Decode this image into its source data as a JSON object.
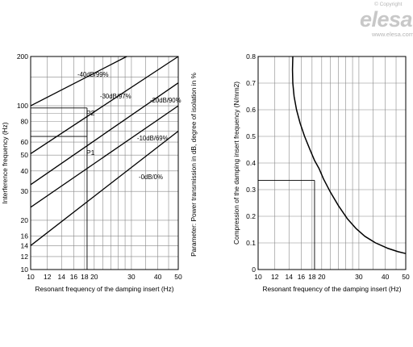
{
  "watermark": {
    "copyright": "© Copyright",
    "logo": "elesa",
    "url": "www.elesa.com"
  },
  "chart_data": [
    {
      "type": "line",
      "xscale": "log",
      "yscale": "log",
      "xlim": [
        10,
        50
      ],
      "ylim": [
        10,
        200
      ],
      "x_ticks": [
        10,
        12,
        14,
        16,
        18,
        20,
        30,
        40,
        50
      ],
      "y_ticks": [
        10,
        12,
        14,
        16,
        20,
        30,
        40,
        50,
        60,
        80,
        100,
        200
      ],
      "xlabel": "Resonant frequency of the damping insert (Hz)",
      "ylabel": "Interference frequency (Hz)",
      "right_label": "Parameter: Power transmission in dB, degree of isolation in %",
      "grid": true,
      "series": [
        {
          "name": "-40dB/99%",
          "x": [
            10,
            28.5
          ],
          "y": [
            100,
            200
          ]
        },
        {
          "name": "-30dB/97%",
          "x": [
            10,
            50
          ],
          "y": [
            51,
            200
          ]
        },
        {
          "name": "-20dB/90%",
          "x": [
            10,
            50
          ],
          "y": [
            33,
            138
          ]
        },
        {
          "name": "-10dB/69%",
          "x": [
            10,
            50
          ],
          "y": [
            24,
            100
          ]
        },
        {
          "name": "-0dB/0%",
          "x": [
            10,
            50
          ],
          "y": [
            14,
            70
          ]
        }
      ],
      "annotations": [
        {
          "label": "P2",
          "x": 18.5,
          "y": 97
        },
        {
          "label": "P1",
          "x": 18.5,
          "y": 65
        }
      ]
    },
    {
      "type": "line",
      "xscale": "log",
      "yscale": "linear",
      "xlim": [
        10,
        50
      ],
      "ylim": [
        0,
        0.8
      ],
      "x_ticks": [
        10,
        12,
        14,
        16,
        18,
        20,
        30,
        40,
        50
      ],
      "y_ticks": [
        0,
        0.1,
        0.2,
        0.3,
        0.4,
        0.5,
        0.6,
        0.7,
        0.8
      ],
      "xlabel": "Resonant frequency of the damping insert (Hz)",
      "ylabel": "Compression of the damping insert frequency (N/mm2)",
      "grid": true,
      "series": [
        {
          "name": "",
          "x": [
            14.6,
            14.55,
            14.6,
            14.8,
            15.2,
            15.8,
            16.6,
            17.6,
            18.5,
            19.4,
            20.4,
            22,
            24,
            26.5,
            29,
            32,
            36,
            41,
            46,
            50
          ],
          "y": [
            0.8,
            0.75,
            0.7,
            0.65,
            0.6,
            0.55,
            0.5,
            0.45,
            0.41,
            0.38,
            0.34,
            0.29,
            0.24,
            0.19,
            0.155,
            0.125,
            0.1,
            0.08,
            0.067,
            0.06
          ]
        }
      ],
      "annotations": [
        {
          "label": "",
          "x": 18.5,
          "y": 0.335
        }
      ]
    }
  ]
}
